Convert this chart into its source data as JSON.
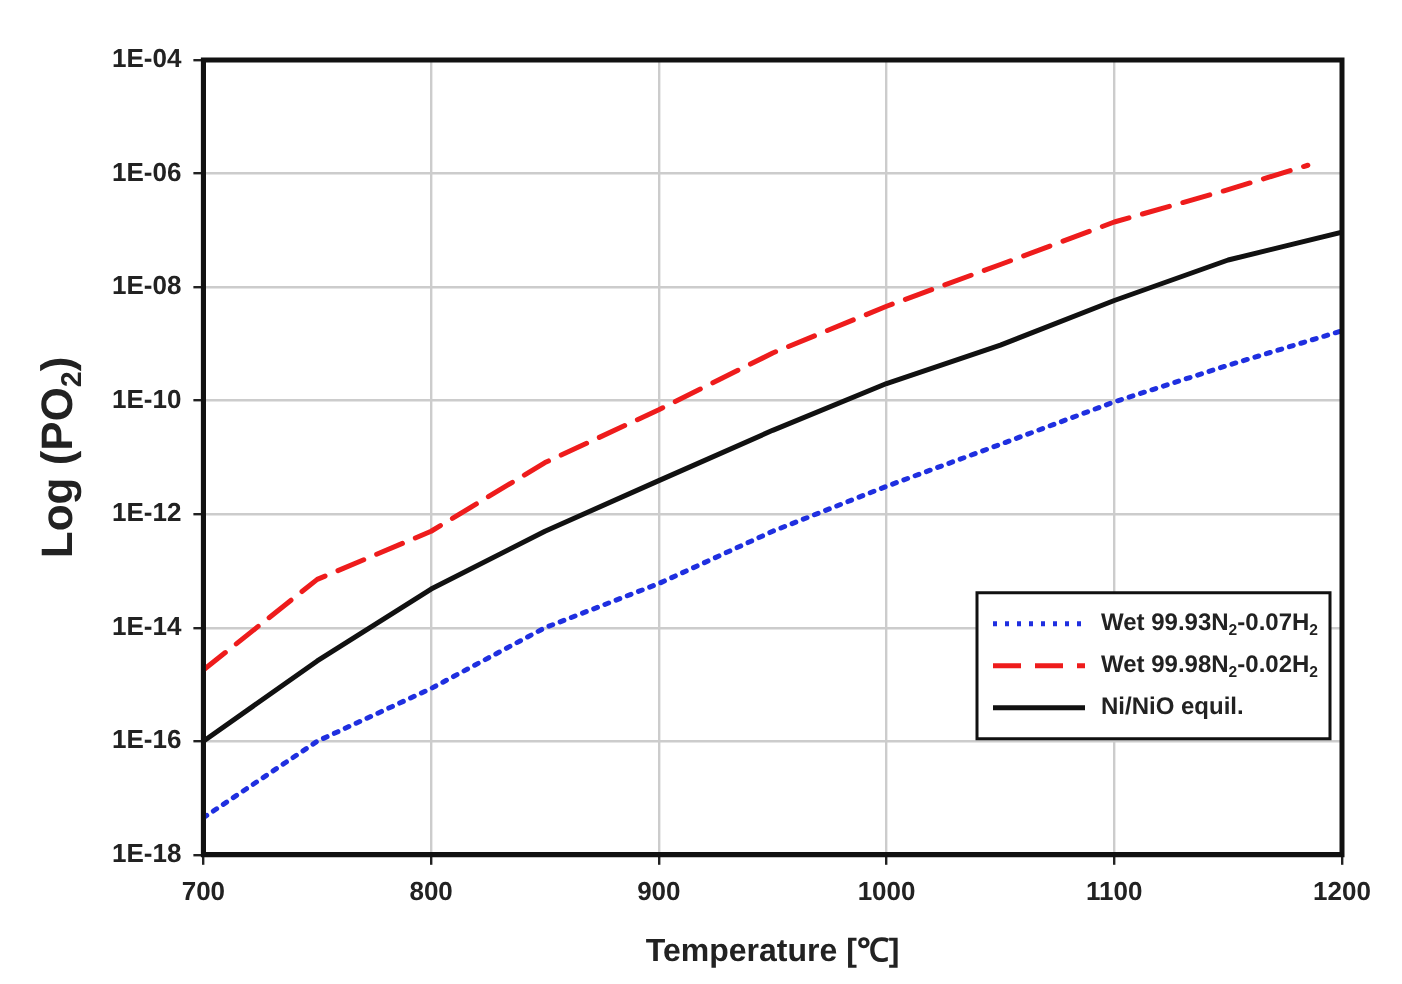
{
  "chart_data": {
    "type": "line",
    "xlabel": "Temperature [℃]",
    "ylabel": "Log (PO$_{2}$)",
    "xlim": [
      700,
      1200
    ],
    "xticks": [
      700,
      800,
      900,
      1000,
      1100,
      1200
    ],
    "ylim": [
      1e-18,
      0.0001
    ],
    "yticks": [
      {
        "value": 1e-18,
        "label": "1E-18"
      },
      {
        "value": 1e-16,
        "label": "1E-16"
      },
      {
        "value": 1e-14,
        "label": "1E-14"
      },
      {
        "value": 1e-12,
        "label": "1E-12"
      },
      {
        "value": 1e-10,
        "label": "1E-10"
      },
      {
        "value": 1e-08,
        "label": "1E-08"
      },
      {
        "value": 1e-06,
        "label": "1E-06"
      },
      {
        "value": 0.0001,
        "label": "1E-04"
      }
    ],
    "log": "y",
    "grid": true,
    "legend": "bottom right",
    "marker": "none",
    "series": [
      {
        "name": "Wet 99.93N$_{2}$-0.07H$_{2}$",
        "color": "#1f2fe0",
        "line_style": "dotted",
        "x": [
          700,
          750,
          800,
          850,
          900,
          950,
          1000,
          1050,
          1100,
          1150,
          1200
        ],
        "values": [
          4.5e-18,
          1e-16,
          8.5e-16,
          1e-14,
          6e-14,
          5e-13,
          3.1e-12,
          1.7e-11,
          9.5e-11,
          4.2e-10,
          1.7e-09
        ]
      },
      {
        "name": "Wet 99.98N$_{2}$-0.02H$_{2}$",
        "color": "#ee1c1c",
        "line_style": "dashed",
        "x": [
          700,
          750,
          800,
          850,
          900,
          950,
          1000,
          1050,
          1100,
          1150,
          1185
        ],
        "values": [
          1.8e-15,
          7.1e-14,
          5e-13,
          8.1e-12,
          6.9e-11,
          6.9e-10,
          4.6e-09,
          2.5e-08,
          1.4e-07,
          5.2e-07,
          1.4e-06
        ]
      },
      {
        "name": "Ni/NiO equil.",
        "color": "#111111",
        "line_style": "solid",
        "x": [
          700,
          750,
          800,
          850,
          900,
          950,
          1000,
          1050,
          1100,
          1150,
          1200
        ],
        "values": [
          1e-16,
          2.6e-15,
          4.8e-14,
          5e-13,
          3.9e-12,
          3e-11,
          2e-10,
          9.5e-10,
          5.8e-09,
          3e-08,
          9.3e-08
        ]
      }
    ]
  }
}
